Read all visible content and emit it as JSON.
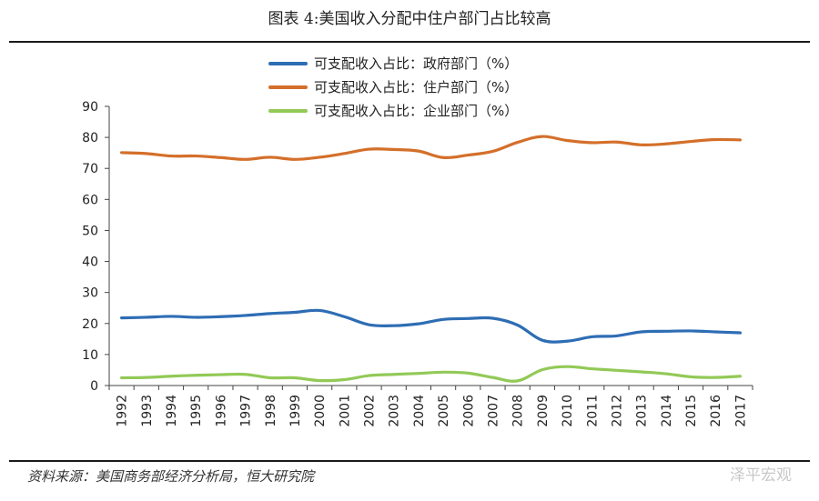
{
  "title": "图表 4:美国收入分配中住户部门占比较高",
  "source": "资料来源：美国商务部经济分析局，恒大研究院",
  "watermark": "泽平宏观",
  "chart_data": {
    "type": "line",
    "x": [
      "1992",
      "1993",
      "1994",
      "1995",
      "1996",
      "1997",
      "1998",
      "1999",
      "2000",
      "2001",
      "2002",
      "2003",
      "2004",
      "2005",
      "2006",
      "2007",
      "2008",
      "2009",
      "2010",
      "2011",
      "2012",
      "2013",
      "2014",
      "2015",
      "2016",
      "2017"
    ],
    "ylim": [
      0,
      90
    ],
    "yticks": [
      "0",
      "10",
      "20",
      "30",
      "40",
      "50",
      "60",
      "70",
      "80",
      "90"
    ],
    "legend_position": "top-center",
    "series": [
      {
        "name": "可支配收入占比：政府部门（%）",
        "color": "#2e6db4",
        "values": [
          21.8,
          22.0,
          22.3,
          22.0,
          22.2,
          22.6,
          23.2,
          23.6,
          24.2,
          22.2,
          19.6,
          19.3,
          19.9,
          21.3,
          21.6,
          21.7,
          19.5,
          14.6,
          14.3,
          15.7,
          16.0,
          17.3,
          17.5,
          17.6,
          17.3,
          17.0
        ]
      },
      {
        "name": "可支配收入占比：住户部门（%）",
        "color": "#d46f2a",
        "values": [
          75.1,
          74.8,
          74.0,
          74.0,
          73.5,
          72.9,
          73.6,
          72.9,
          73.6,
          74.8,
          76.2,
          76.1,
          75.6,
          73.5,
          74.3,
          75.5,
          78.4,
          80.3,
          79.0,
          78.3,
          78.5,
          77.6,
          77.9,
          78.7,
          79.3,
          79.2
        ]
      },
      {
        "name": "可支配收入占比：企业部门（%）",
        "color": "#92c957",
        "values": [
          2.5,
          2.6,
          3.0,
          3.3,
          3.5,
          3.6,
          2.5,
          2.5,
          1.6,
          1.9,
          3.2,
          3.6,
          3.9,
          4.3,
          4.0,
          2.6,
          1.5,
          5.1,
          6.1,
          5.4,
          4.9,
          4.4,
          3.8,
          2.8,
          2.6,
          3.0
        ]
      }
    ]
  }
}
